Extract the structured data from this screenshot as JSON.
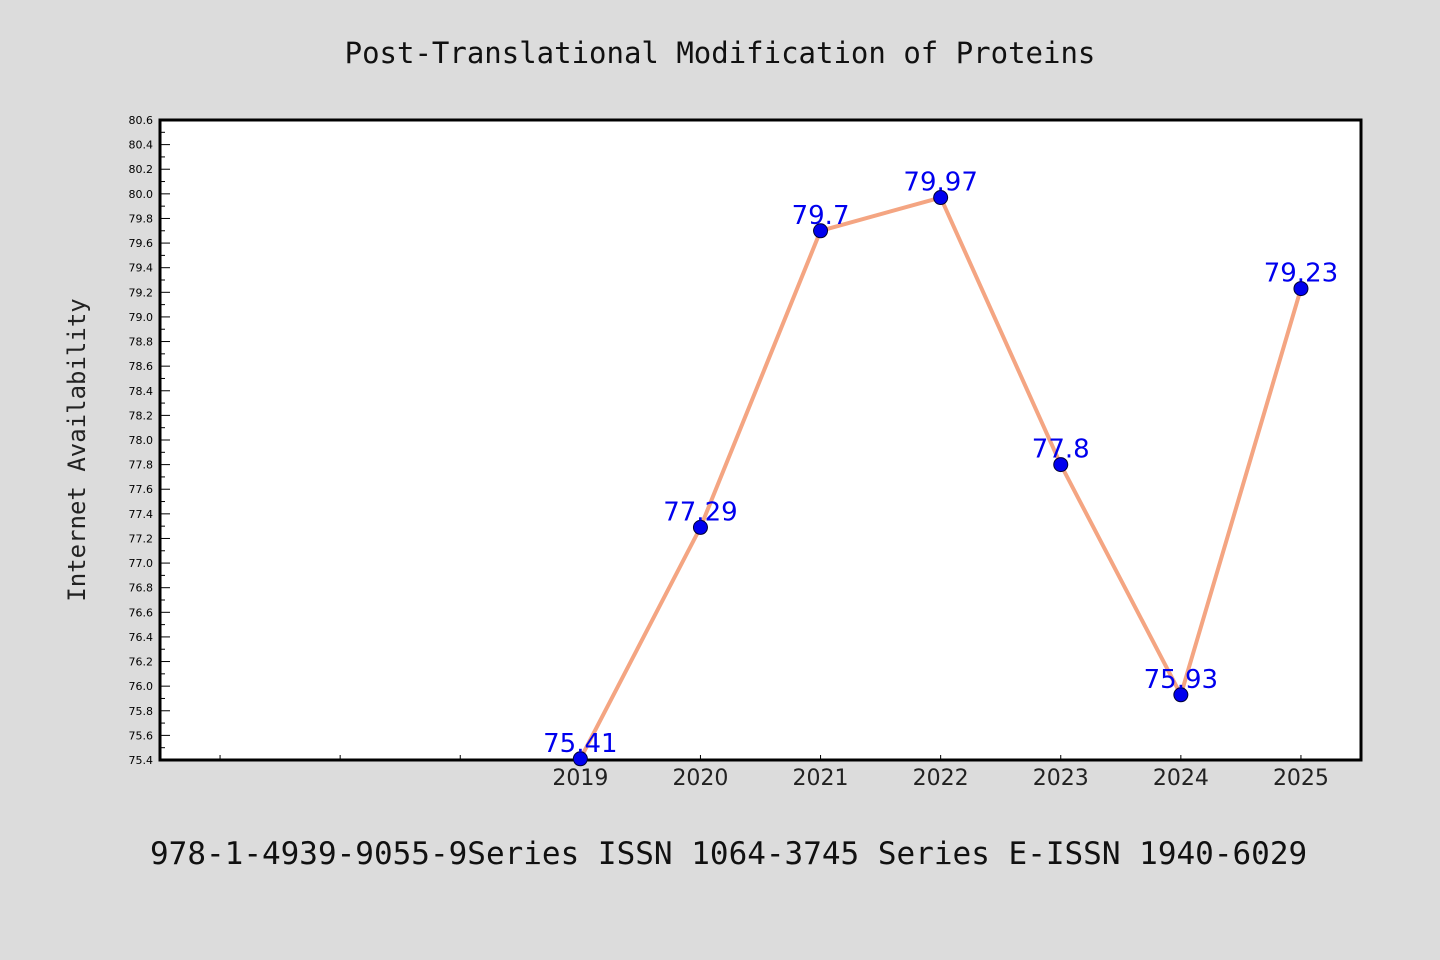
{
  "colors": {
    "background": "#dcdcdc",
    "plot_background": "#ffffff",
    "line": "#f4a582",
    "marker": "#0000ee",
    "data_label": "#0000ee"
  },
  "footer": "978-1-4939-9055-9Series ISSN 1064-3745 Series E-ISSN 1940-6029",
  "chart_data": {
    "type": "line",
    "title": "Post-Translational Modification of Proteins",
    "xlabel": "",
    "ylabel": "Internet Availability",
    "x": [
      "2019",
      "2020",
      "2021",
      "2022",
      "2023",
      "2024",
      "2025"
    ],
    "x_start_offset": 3,
    "values": [
      75.41,
      77.29,
      79.7,
      79.97,
      77.8,
      75.93,
      79.23
    ],
    "data_labels": [
      "75.41",
      "77.29",
      "79.7",
      "79.97",
      "77.8",
      "75.93",
      "79.23"
    ],
    "ylim": [
      75.4,
      80.6
    ],
    "ytick_step": 0.2,
    "yticks": [
      "75.4",
      "75.6",
      "75.8",
      "76.0",
      "76.2",
      "76.4",
      "76.6",
      "76.8",
      "77.0",
      "77.2",
      "77.4",
      "77.6",
      "77.8",
      "78.0",
      "78.2",
      "78.4",
      "78.6",
      "78.8",
      "79.0",
      "79.2",
      "79.4",
      "79.6",
      "79.8",
      "80.0",
      "80.2",
      "80.4",
      "80.6"
    ],
    "grid": false,
    "legend": "none"
  }
}
